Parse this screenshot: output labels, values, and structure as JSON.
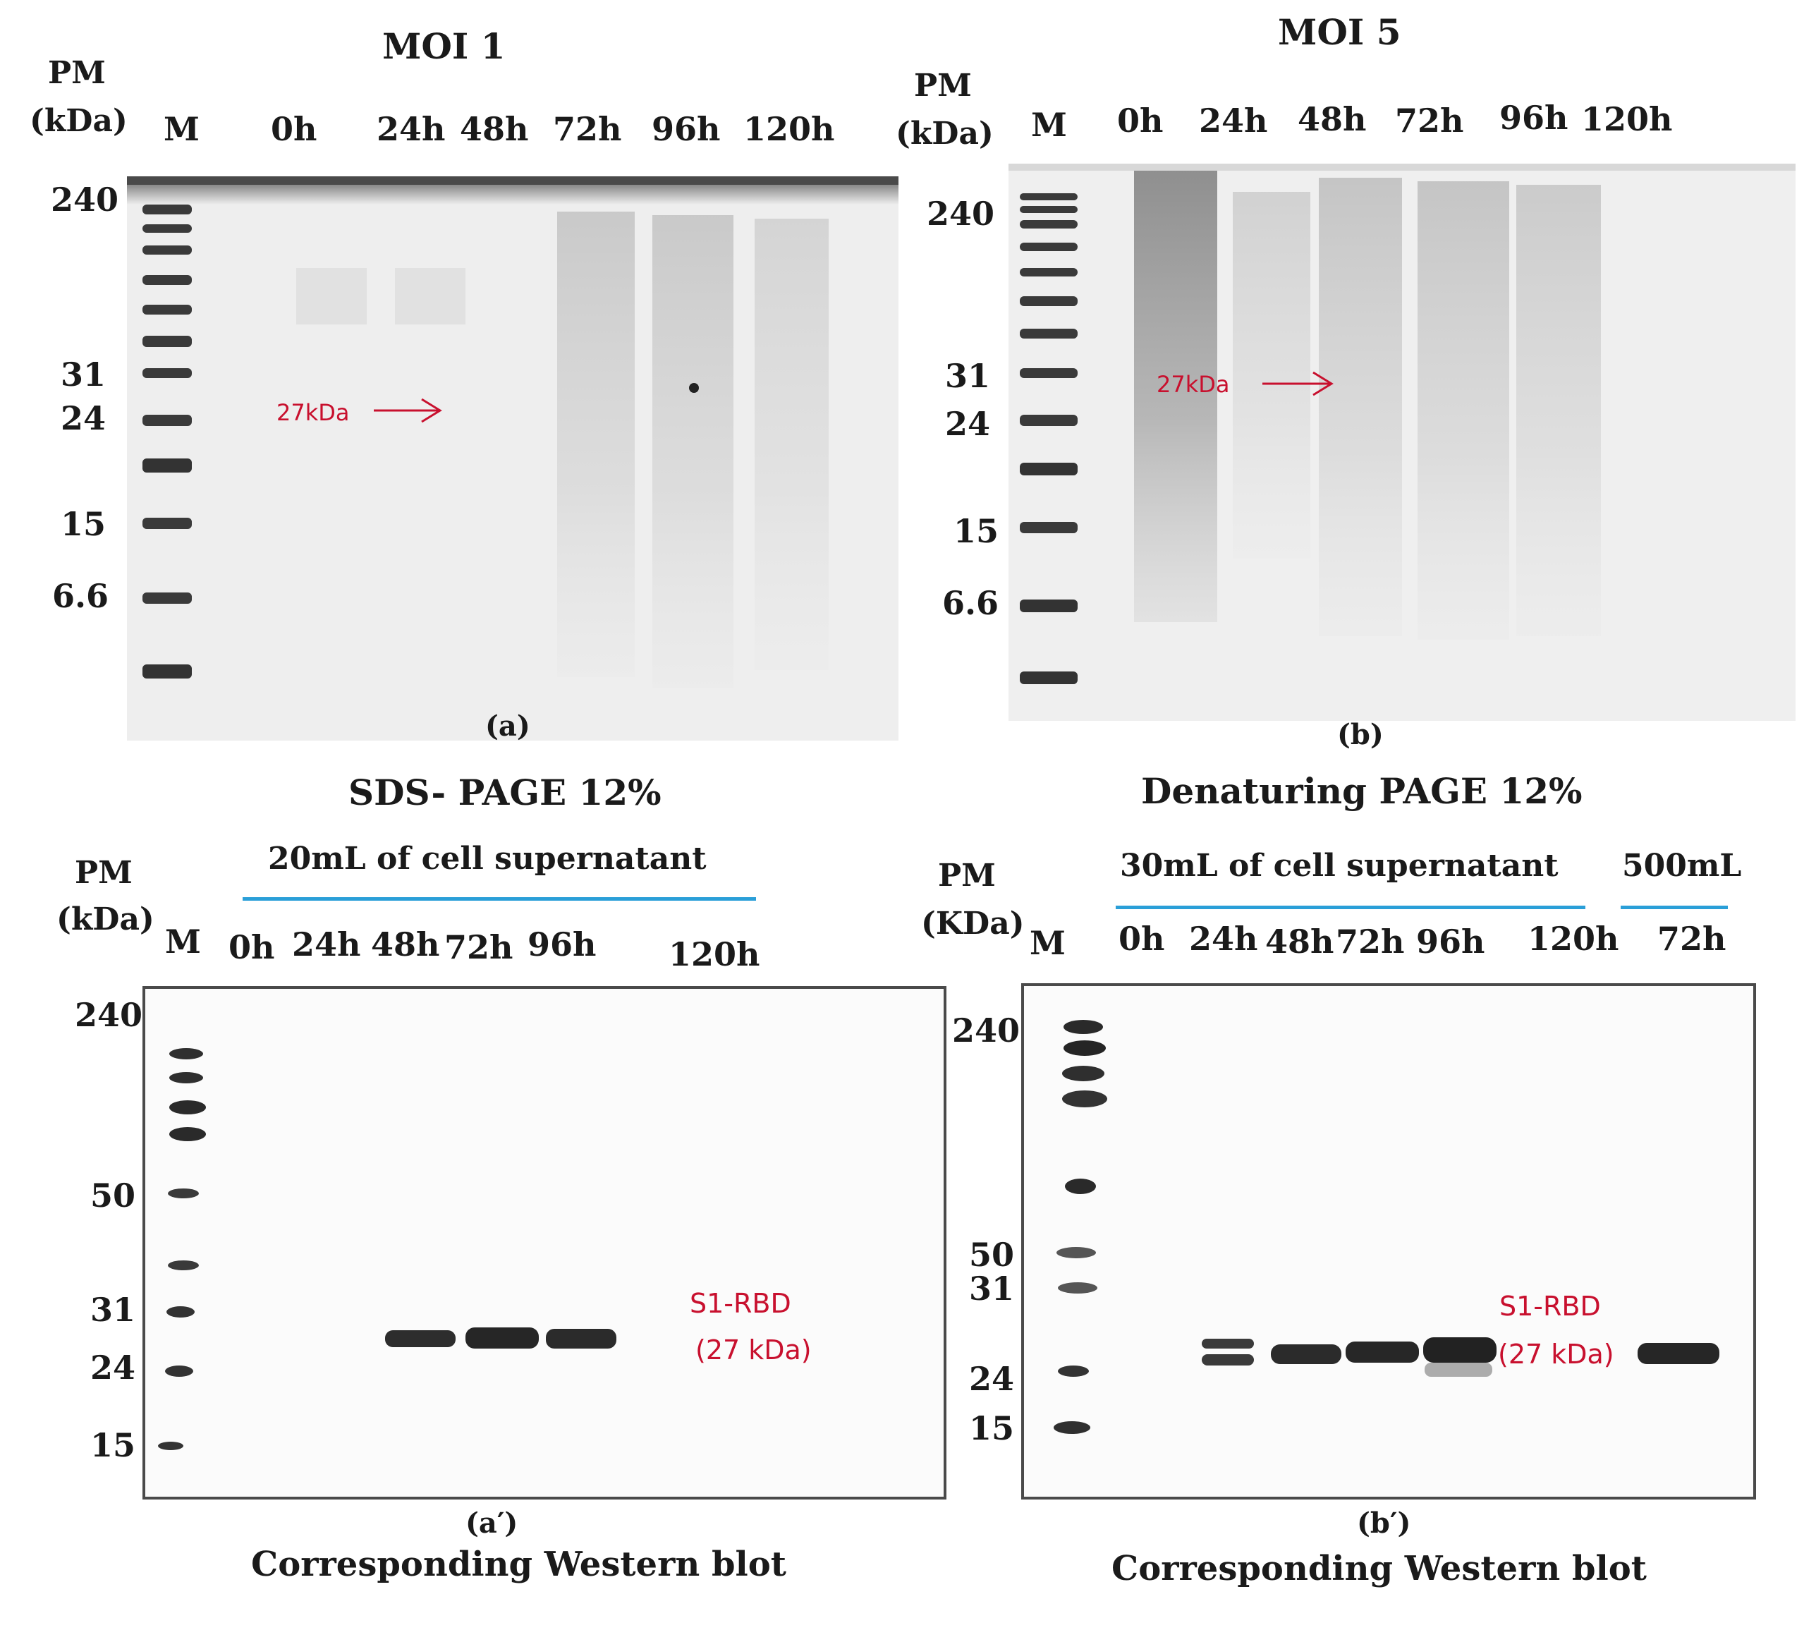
{
  "panel_a": {
    "title": "MOI 1",
    "pm_label": "PM",
    "unit_label": "(kDa)",
    "marker_lane": "M",
    "lanes": [
      "0h",
      "24h",
      "48h",
      "72h",
      "96h",
      "120h"
    ],
    "mw_labels": [
      "240",
      "31",
      "24",
      "15",
      "6.6"
    ],
    "arrow_label": "27kDa",
    "panel_label": "(a)",
    "caption": "SDS- PAGE 12%"
  },
  "panel_b": {
    "title": "MOI 5",
    "pm_label": "PM",
    "unit_label": "(kDa)",
    "marker_lane": "M",
    "lanes": [
      "0h",
      "24h",
      "48h",
      "72h",
      "96h",
      "120h"
    ],
    "mw_labels": [
      "240",
      "31",
      "24",
      "15",
      "6.6"
    ],
    "arrow_label": "27kDa",
    "panel_label": "(b)",
    "caption": "Denaturing PAGE 12%"
  },
  "panel_a_prime": {
    "group_label": "20mL of cell supernatant",
    "pm_label": "PM",
    "unit_label": "(kDa)",
    "marker_lane": "M",
    "lanes": [
      "0h",
      "24h",
      "48h",
      "72h",
      "96h",
      "120h"
    ],
    "mw_labels": [
      "240",
      "50",
      "31",
      "24",
      "15"
    ],
    "band_label_1": "S1-RBD",
    "band_label_2": "(27 kDa)",
    "panel_label": "(a′)",
    "caption": "Corresponding Western blot"
  },
  "panel_b_prime": {
    "group_label_1": "30mL of cell supernatant",
    "group_label_2": "500mL",
    "pm_label": "PM",
    "unit_label": "(KDa)",
    "marker_lane": "M",
    "lanes": [
      "0h",
      "24h",
      "48h",
      "72h",
      "96h",
      "120h"
    ],
    "extra_lane": "72h",
    "mw_labels": [
      "240",
      "50",
      "31",
      "24",
      "15"
    ],
    "band_label_1": "S1-RBD",
    "band_label_2": "(27 kDa)",
    "panel_label": "(b′)",
    "caption": "Corresponding Western blot"
  },
  "colors": {
    "accent_red": "#c8102e",
    "line_blue": "#2a9fd8",
    "gel_bg": "#ececec",
    "marker_band": "#3a3a3a"
  }
}
